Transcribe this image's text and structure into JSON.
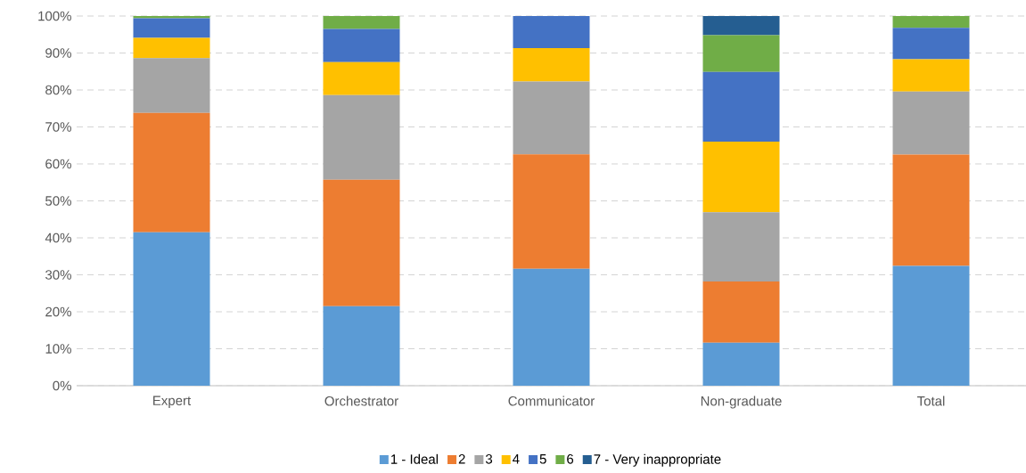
{
  "chart_data": {
    "type": "bar",
    "stacked": true,
    "categories": [
      "Expert",
      "Orchestrator",
      "Communicator",
      "Non-graduate",
      "Total"
    ],
    "series": [
      {
        "name": "1 - Ideal",
        "color": "#5b9bd5",
        "values": [
          41.5,
          21.5,
          31.6,
          11.6,
          32.4
        ]
      },
      {
        "name": "2",
        "color": "#ed7d31",
        "values": [
          32.3,
          34.2,
          31.0,
          16.6,
          30.1
        ]
      },
      {
        "name": "3",
        "color": "#a5a5a5",
        "values": [
          14.8,
          22.9,
          19.7,
          18.7,
          17.1
        ]
      },
      {
        "name": "4",
        "color": "#ffc000",
        "values": [
          5.5,
          8.9,
          9.0,
          19.1,
          8.7
        ]
      },
      {
        "name": "5",
        "color": "#4472c4",
        "values": [
          5.3,
          9.0,
          8.7,
          18.9,
          8.5
        ]
      },
      {
        "name": "6",
        "color": "#70ad47",
        "values": [
          0.6,
          3.5,
          0,
          9.9,
          3.2
        ]
      },
      {
        "name": "7 - Very inappropriate",
        "color": "#255e91",
        "values": [
          0,
          0,
          0,
          5.2,
          0
        ]
      }
    ],
    "ylim": [
      0,
      100
    ],
    "yticks": [
      {
        "value": 0,
        "label": "0%"
      },
      {
        "value": 10,
        "label": "10%"
      },
      {
        "value": 20,
        "label": "20%"
      },
      {
        "value": 30,
        "label": "30%"
      },
      {
        "value": 40,
        "label": "40%"
      },
      {
        "value": 50,
        "label": "50%"
      },
      {
        "value": 60,
        "label": "60%"
      },
      {
        "value": 70,
        "label": "70%"
      },
      {
        "value": 80,
        "label": "80%"
      },
      {
        "value": 90,
        "label": "90%"
      },
      {
        "value": 100,
        "label": "100%"
      }
    ],
    "grid": "y",
    "legend": "bottom"
  }
}
